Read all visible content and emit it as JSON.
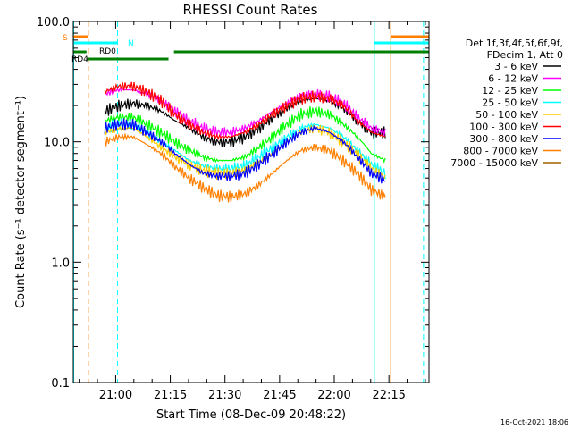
{
  "chart_data": {
    "type": "line",
    "title": "RHESSI Count Rates",
    "xlabel": "Start Time (08-Dec-09 20:48:22)",
    "ylabel": "Count Rate (s⁻¹ detector segment⁻¹)",
    "yscale": "log",
    "ylim": [
      0.1,
      100.0
    ],
    "xlim": [
      "20:48:22",
      "22:26:00"
    ],
    "x_ticks": [
      "21:00",
      "21:15",
      "21:30",
      "21:45",
      "22:00",
      "22:15"
    ],
    "y_ticks": [
      "0.1",
      "1.0",
      "10.0",
      "100.0"
    ],
    "legend_position": "right",
    "legend_header": [
      "Det 1f,3f,4f,5f,6f,9f,",
      "FDecim 1, Att 0"
    ],
    "data_start": "20:56:30",
    "data_end": "22:15:00",
    "series": [
      {
        "name": "3 - 6 keV",
        "color": "#000000",
        "values": [
          18,
          20,
          21,
          20,
          18,
          15,
          13,
          11,
          10,
          10,
          11,
          13,
          16,
          19,
          22,
          23,
          22,
          19,
          15,
          12,
          12
        ],
        "values_note_times": "20:57 to 22:14 in ~3.85 min steps"
      },
      {
        "name": "6 - 12 keV",
        "color": "#ff00ff",
        "values": [
          25,
          27,
          27,
          25,
          22,
          18,
          15,
          13,
          12,
          12,
          13,
          15,
          18,
          21,
          24,
          25,
          24,
          21,
          16,
          13,
          12
        ]
      },
      {
        "name": "12 - 25 keV",
        "color": "#00ff00",
        "values": [
          15,
          16,
          16,
          14,
          12,
          10,
          8.5,
          7.5,
          7,
          7,
          7.5,
          9,
          11,
          14,
          17,
          18,
          17,
          14,
          11,
          8,
          7
        ]
      },
      {
        "name": "25 - 50 keV",
        "color": "#00ffff",
        "values": [
          13,
          14,
          14,
          12,
          10,
          8.5,
          7,
          6.3,
          6,
          6,
          6.3,
          7.5,
          9,
          11,
          13,
          14,
          13,
          11,
          8.5,
          6.5,
          5.5
        ]
      },
      {
        "name": "50 - 100 keV",
        "color": "#ffcc00",
        "values": [
          12,
          13,
          13,
          11,
          9,
          7.5,
          6.5,
          5.8,
          5.5,
          5.5,
          5.8,
          6.8,
          8,
          10,
          12,
          13,
          12,
          10,
          7.8,
          6,
          5
        ]
      },
      {
        "name": "100 - 300 keV",
        "color": "#ff0000",
        "values": [
          26,
          29,
          29,
          26,
          22,
          17,
          14,
          12,
          11,
          11,
          12,
          14,
          17,
          20,
          23,
          24,
          23,
          20,
          15,
          12,
          11
        ]
      },
      {
        "name": "300 - 800 keV",
        "color": "#0000ff",
        "values": [
          13,
          14,
          14,
          12,
          10,
          8,
          6.5,
          5.5,
          5.2,
          5.2,
          5.5,
          6.5,
          8,
          10,
          12,
          13,
          12,
          10,
          7.5,
          5.5,
          4.8
        ]
      },
      {
        "name": "800 - 7000 keV",
        "color": "#ff8000",
        "values": [
          10,
          11,
          11,
          9.5,
          8,
          6.2,
          5,
          4.2,
          3.6,
          3.5,
          3.7,
          4.4,
          5.5,
          7,
          8.5,
          9,
          8.5,
          7,
          5.5,
          4,
          3.5
        ]
      },
      {
        "name": "7000 - 15000 keV",
        "color": "#a06000",
        "values": []
      }
    ],
    "annotations": [
      {
        "label": "S",
        "color": "#ff8000"
      },
      {
        "label": "N",
        "color": "#00ffff"
      },
      {
        "label": "RD0",
        "color": "#008000"
      },
      {
        "label": "RD4",
        "color": "#008000"
      }
    ],
    "footer_date": "16-Oct-2021 18:06"
  }
}
